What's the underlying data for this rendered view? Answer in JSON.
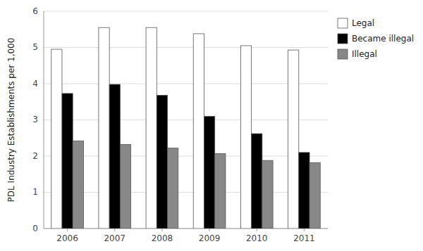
{
  "chart_data": {
    "type": "bar",
    "categories": [
      "2006",
      "2007",
      "2008",
      "2009",
      "2010",
      "2011"
    ],
    "series": [
      {
        "name": "Legal",
        "color": "#ffffff",
        "values": [
          4.95,
          5.55,
          5.55,
          5.38,
          5.05,
          4.93
        ]
      },
      {
        "name": "Became illegal",
        "color": "#000000",
        "values": [
          3.73,
          3.98,
          3.68,
          3.1,
          2.62,
          2.1
        ]
      },
      {
        "name": "Illegal",
        "color": "#888888",
        "values": [
          2.42,
          2.32,
          2.22,
          2.07,
          1.88,
          1.82
        ]
      }
    ],
    "ylabel": "PDL Industry Establishments per 1,000",
    "ylim": [
      0,
      6
    ],
    "yticks": [
      0,
      1,
      2,
      3,
      4,
      5,
      6
    ],
    "grid": true,
    "legend": "right"
  }
}
